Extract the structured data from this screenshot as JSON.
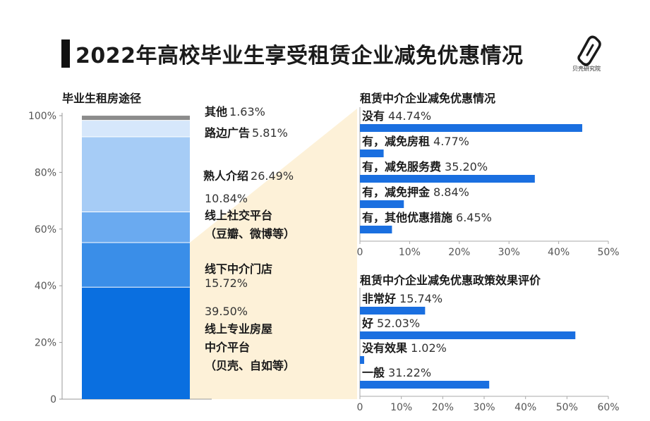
{
  "page": {
    "title": "2022年高校毕业生享受租赁企业减免优惠情况",
    "logo_text": "贝壳研究院",
    "logo_icon": "beike-logo-icon"
  },
  "colors": {
    "stack": [
      "#0a6fe0",
      "#3a8ee8",
      "#6aaaf0",
      "#a6ccf6",
      "#d6e7fb",
      "#8c8c8c"
    ],
    "bar": "#1a6fe0",
    "wedge": "#fdf1d8"
  },
  "chart_data": [
    {
      "type": "bar",
      "stacked": true,
      "title": "毕业生租房途径",
      "ylim": [
        0,
        100
      ],
      "y_ticks": [
        "0",
        "20%",
        "40%",
        "60%",
        "80%",
        "100%"
      ],
      "series": [
        {
          "name": "线上专业房屋中介平台（贝壳、自如等）",
          "label_lines": [
            "线上专业房屋",
            "中介平台",
            "（贝壳、自如等）"
          ],
          "value": 39.5,
          "value_label": "39.50%"
        },
        {
          "name": "线下中介门店",
          "label_lines": [
            "线下中介门店"
          ],
          "value": 15.72,
          "value_label": "15.72%"
        },
        {
          "name": "线上社交平台（豆瓣、微博等）",
          "label_lines": [
            "线上社交平台",
            "（豆瓣、微博等）"
          ],
          "value": 10.84,
          "value_label": "10.84%"
        },
        {
          "name": "熟人介绍",
          "label_lines": [
            "熟人介绍"
          ],
          "value": 26.49,
          "value_label": "26.49%"
        },
        {
          "name": "路边广告",
          "label_lines": [
            "路边广告"
          ],
          "value": 5.81,
          "value_label": "5.81%"
        },
        {
          "name": "其他",
          "label_lines": [
            "其他"
          ],
          "value": 1.63,
          "value_label": "1.63%"
        }
      ]
    },
    {
      "type": "bar",
      "orientation": "horizontal",
      "title": "租赁中介企业减免优惠情况",
      "xlim": [
        0,
        50
      ],
      "x_ticks": [
        "0",
        "10%",
        "20%",
        "30%",
        "40%",
        "50%"
      ],
      "categories": [
        "没有",
        "有，减免房租",
        "有，减免服务费",
        "有，减免押金",
        "有，其他优惠措施"
      ],
      "values": [
        44.74,
        4.77,
        35.2,
        8.84,
        6.45
      ],
      "value_labels": [
        "44.74%",
        "4.77%",
        "35.20%",
        "8.84%",
        "6.45%"
      ]
    },
    {
      "type": "bar",
      "orientation": "horizontal",
      "title": "租赁中介企业减免优惠政策效果评价",
      "xlim": [
        0,
        60
      ],
      "x_ticks": [
        "0",
        "10%",
        "20%",
        "30%",
        "40%",
        "50%",
        "60%"
      ],
      "categories": [
        "非常好",
        "好",
        "没有效果",
        "一般"
      ],
      "values": [
        15.74,
        52.03,
        1.02,
        31.22
      ],
      "value_labels": [
        "15.74%",
        "52.03%",
        "1.02%",
        "31.22%"
      ]
    }
  ]
}
